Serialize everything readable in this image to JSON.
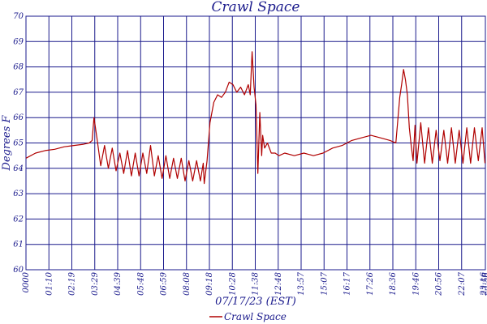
{
  "chart_data": {
    "type": "line",
    "title": "Crawl Space",
    "xlabel": "07/17/23 (EST)",
    "ylabel": "Degrees F",
    "ylim": [
      60,
      70
    ],
    "yticks": [
      "60",
      "61",
      "62",
      "63",
      "64",
      "65",
      "66",
      "67",
      "68",
      "69",
      "70"
    ],
    "xticks": [
      "0000",
      "01:10",
      "02:19",
      "03:29",
      "04:39",
      "05:48",
      "06:59",
      "08:08",
      "09:18",
      "10:28",
      "11:38",
      "12:48",
      "13:57",
      "15:07",
      "16:17",
      "17:26",
      "18:36",
      "19:46",
      "20:56",
      "22:07",
      "23:16",
      "23:58"
    ],
    "xlim_hours": [
      0,
      23.97
    ],
    "grid": true,
    "legend_position": "bottom-center",
    "colors": {
      "series": "#b00000",
      "text": "#1a1a8c",
      "grid": "#1a1a8c"
    },
    "series": [
      {
        "name": "Crawl Space",
        "x_hours": [
          0.0,
          0.5,
          1.0,
          1.5,
          2.0,
          2.5,
          3.0,
          3.3,
          3.45,
          3.55,
          3.7,
          3.9,
          4.1,
          4.3,
          4.5,
          4.7,
          4.9,
          5.1,
          5.3,
          5.5,
          5.7,
          5.9,
          6.1,
          6.3,
          6.5,
          6.7,
          6.9,
          7.1,
          7.3,
          7.5,
          7.7,
          7.9,
          8.1,
          8.3,
          8.5,
          8.7,
          8.9,
          9.1,
          9.25,
          9.3,
          9.45,
          9.6,
          9.8,
          10.0,
          10.2,
          10.4,
          10.6,
          10.8,
          11.0,
          11.2,
          11.4,
          11.6,
          11.7,
          11.8,
          11.9,
          12.0,
          12.1,
          12.2,
          12.3,
          12.35,
          12.45,
          12.6,
          12.8,
          13.0,
          13.2,
          13.5,
          14.0,
          14.5,
          15.0,
          15.5,
          16.0,
          16.5,
          17.0,
          17.5,
          18.0,
          18.5,
          19.0,
          19.3,
          19.5,
          19.6,
          19.7,
          19.8,
          19.9,
          20.0,
          20.1,
          20.2,
          20.3,
          20.4,
          20.6,
          20.8,
          21.0,
          21.2,
          21.4,
          21.6,
          21.8,
          22.0,
          22.2,
          22.4,
          22.6,
          22.8,
          23.0,
          23.2,
          23.4,
          23.6,
          23.8,
          23.95
        ],
        "values": [
          64.4,
          64.6,
          64.7,
          64.75,
          64.85,
          64.9,
          64.95,
          65.0,
          65.1,
          66.0,
          65.2,
          64.1,
          64.9,
          64.0,
          64.8,
          63.9,
          64.6,
          63.8,
          64.7,
          63.7,
          64.6,
          63.7,
          64.6,
          63.8,
          64.9,
          63.7,
          64.5,
          63.6,
          64.5,
          63.6,
          64.4,
          63.6,
          64.4,
          63.5,
          64.3,
          63.5,
          64.3,
          63.5,
          64.2,
          63.4,
          64.3,
          65.8,
          66.6,
          66.9,
          66.8,
          67.0,
          67.4,
          67.3,
          67.0,
          67.2,
          66.9,
          67.3,
          66.9,
          68.6,
          67.2,
          66.5,
          63.8,
          66.2,
          64.5,
          65.3,
          64.8,
          65.0,
          64.6,
          64.6,
          64.5,
          64.6,
          64.5,
          64.6,
          64.5,
          64.6,
          64.8,
          64.9,
          65.1,
          65.2,
          65.3,
          65.2,
          65.1,
          65.0,
          66.8,
          67.3,
          67.9,
          67.5,
          66.9,
          65.6,
          64.9,
          64.3,
          65.7,
          64.2,
          65.8,
          64.2,
          65.6,
          64.2,
          65.5,
          64.3,
          65.5,
          64.2,
          65.6,
          64.2,
          65.5,
          64.2,
          65.6,
          64.2,
          65.6,
          64.3,
          65.6,
          64.2
        ]
      }
    ]
  }
}
